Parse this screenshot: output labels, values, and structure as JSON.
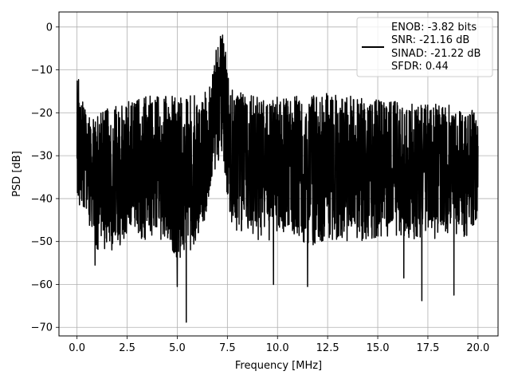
{
  "chart_data": {
    "type": "line",
    "xlabel": "Frequency [MHz]",
    "ylabel": "PSD [dB]",
    "xlim": [
      -0.9,
      21
    ],
    "ylim": [
      -72,
      3.5
    ],
    "grid": true,
    "x_ticks": [
      0.0,
      2.5,
      5.0,
      7.5,
      10.0,
      12.5,
      15.0,
      17.5,
      20.0
    ],
    "x_tick_labels": [
      "0.0",
      "2.5",
      "5.0",
      "7.5",
      "10.0",
      "12.5",
      "15.0",
      "17.5",
      "20.0"
    ],
    "y_ticks": [
      0,
      -10,
      -20,
      -30,
      -40,
      -50,
      -60,
      -70
    ],
    "y_tick_labels": [
      "0",
      "−10",
      "−20",
      "−30",
      "−40",
      "−50",
      "−60",
      "−70"
    ],
    "legend_position": "top-right",
    "legend_lines": [
      "ENOB: -3.82 bits",
      "SNR: -21.16 dB",
      "SINAD: -21.22 dB",
      "SFDR: 0.44"
    ],
    "series": [
      {
        "color": "#000000",
        "style": "noisy spectrum",
        "x": [
          0,
          0.5,
          1,
          1.5,
          2,
          2.5,
          3,
          3.5,
          4,
          4.5,
          5,
          5.5,
          6,
          6.5,
          6.8,
          7.0,
          7.2,
          7.4,
          7.6,
          8,
          8.5,
          9,
          9.5,
          10,
          10.5,
          11,
          11.5,
          12,
          12.5,
          13,
          13.5,
          14,
          14.5,
          15,
          15.5,
          16,
          16.5,
          17,
          17.5,
          18,
          18.5,
          19,
          19.5,
          20
        ],
        "envelope_upper": [
          -9,
          -21,
          -20,
          -19,
          -18,
          -17,
          -17,
          -16,
          -16,
          -16,
          -16,
          -16,
          -16,
          -15,
          -10,
          -3,
          0,
          -5,
          -14,
          -15,
          -16,
          -16,
          -16,
          -16,
          -16,
          -16,
          -16,
          -16,
          -15,
          -16,
          -16,
          -16,
          -17,
          -17,
          -17,
          -17,
          -18,
          -18,
          -18,
          -18,
          -18,
          -19,
          -19,
          -19
        ],
        "envelope_lower": [
          -42,
          -45,
          -52,
          -52,
          -52,
          -50,
          -49,
          -50,
          -50,
          -50,
          -54,
          -55,
          -49,
          -44,
          -36,
          -32,
          -32,
          -36,
          -45,
          -48,
          -49,
          -50,
          -50,
          -50,
          -50,
          -50,
          -51,
          -51,
          -50,
          -50,
          -50,
          -50,
          -50,
          -50,
          -49,
          -49,
          -49,
          -50,
          -50,
          -49,
          -49,
          -49,
          -49,
          -45
        ],
        "dips": [
          {
            "x": 0.9,
            "y": -55.5
          },
          {
            "x": 5.0,
            "y": -60.5
          },
          {
            "x": 5.45,
            "y": -68.8
          },
          {
            "x": 9.8,
            "y": -60.0
          },
          {
            "x": 11.5,
            "y": -60.5
          },
          {
            "x": 16.3,
            "y": -58.5
          },
          {
            "x": 17.2,
            "y": -63.8
          },
          {
            "x": 18.8,
            "y": -62.5
          }
        ]
      }
    ]
  }
}
